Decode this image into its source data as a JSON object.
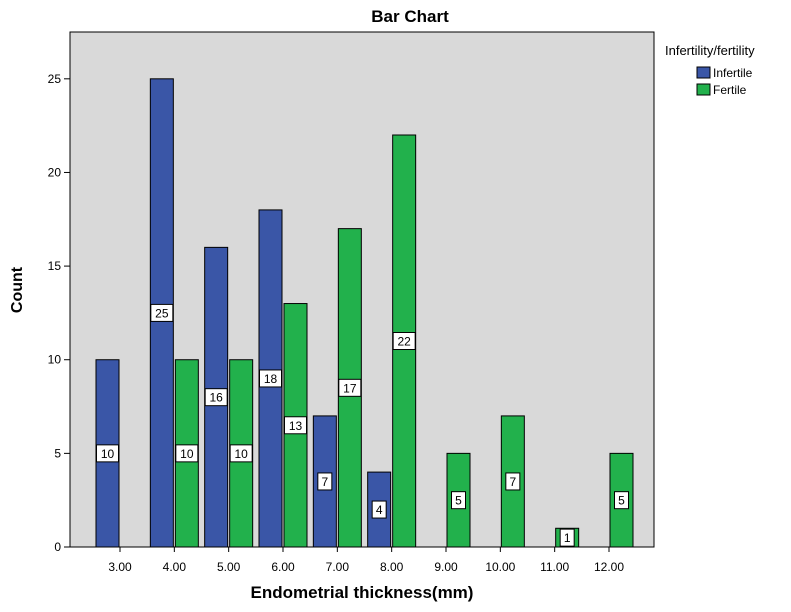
{
  "chart_data": {
    "type": "bar",
    "title": "Bar Chart",
    "xlabel": "Endometrial thickness(mm)",
    "ylabel": "Count",
    "categories": [
      "3.00",
      "4.00",
      "5.00",
      "6.00",
      "7.00",
      "8.00",
      "9.00",
      "10.00",
      "11.00",
      "12.00"
    ],
    "series": [
      {
        "name": "Infertile",
        "color": "#3a56a7",
        "values": [
          10,
          25,
          16,
          18,
          7,
          4,
          null,
          null,
          null,
          null
        ]
      },
      {
        "name": "Fertile",
        "color": "#22b14c",
        "values": [
          null,
          10,
          10,
          13,
          17,
          22,
          5,
          7,
          1,
          5
        ]
      }
    ],
    "ylim": [
      0,
      27.5
    ],
    "yticks": [
      0,
      5,
      10,
      15,
      20,
      25
    ],
    "legend": {
      "title": "Infertility/fertility",
      "position": "right"
    },
    "plot_background": "#d9d9d9",
    "grid": false
  }
}
